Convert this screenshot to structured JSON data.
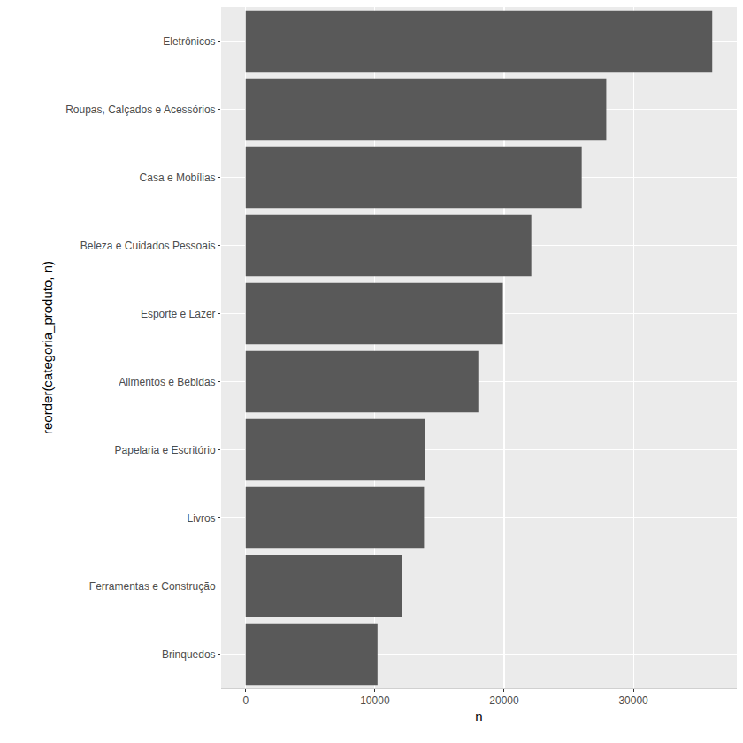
{
  "chart_data": {
    "type": "bar",
    "orientation": "horizontal",
    "categories": [
      "Eletrônicos",
      "Roupas, Calçados e Acessórios",
      "Casa e Mobílias",
      "Beleza e Cuidados Pessoais",
      "Esporte e Lazer",
      "Alimentos e Bebidas",
      "Papelaria e Escritório",
      "Livros",
      "Ferramentas e Construção",
      "Brinquedos"
    ],
    "values": [
      36100,
      27900,
      26000,
      22100,
      19900,
      18000,
      13900,
      13800,
      12100,
      10200
    ],
    "color": "#595959",
    "x_label": "n",
    "y_label": "reorder(categoria_produto, n)",
    "xlim": [
      -1900,
      38000
    ],
    "xticks": [
      0,
      10000,
      20000,
      30000
    ],
    "grid": true
  }
}
